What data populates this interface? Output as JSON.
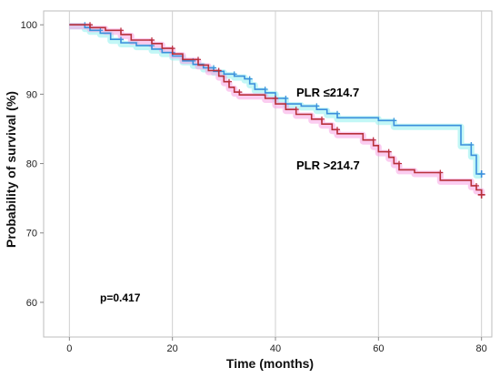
{
  "chart_data": {
    "type": "line",
    "step": true,
    "xlabel": "Time (months)",
    "ylabel": "Probability of survival (%)",
    "xlim": [
      -5,
      82
    ],
    "ylim": [
      55,
      102
    ],
    "xticks": [
      0,
      20,
      40,
      60,
      80
    ],
    "yticks": [
      60,
      70,
      80,
      90,
      100
    ],
    "grid": "vertical",
    "annotations": {
      "p_value": "p=0.417"
    },
    "series": [
      {
        "name": "PLR ≤214.7",
        "color": "#3b8fdc",
        "band_color": "#8ff0ee",
        "points": [
          [
            0,
            100
          ],
          [
            3,
            100
          ],
          [
            3,
            99.6
          ],
          [
            4,
            99.6
          ],
          [
            4,
            99.2
          ],
          [
            6,
            99.2
          ],
          [
            6,
            98.8
          ],
          [
            8,
            98.8
          ],
          [
            8,
            97.9
          ],
          [
            10,
            97.9
          ],
          [
            10,
            97.4
          ],
          [
            13,
            97.4
          ],
          [
            13,
            97.0
          ],
          [
            16,
            97.0
          ],
          [
            16,
            96.5
          ],
          [
            18,
            96.5
          ],
          [
            18,
            96.0
          ],
          [
            20,
            96.0
          ],
          [
            20,
            95.5
          ],
          [
            22,
            95.5
          ],
          [
            22,
            94.8
          ],
          [
            24,
            94.8
          ],
          [
            24,
            94.3
          ],
          [
            26,
            94.3
          ],
          [
            26,
            93.8
          ],
          [
            28,
            93.8
          ],
          [
            28,
            93.3
          ],
          [
            30,
            93.3
          ],
          [
            30,
            92.9
          ],
          [
            32,
            92.9
          ],
          [
            32,
            92.6
          ],
          [
            34,
            92.6
          ],
          [
            34,
            92.2
          ],
          [
            35,
            92.2
          ],
          [
            35,
            91.5
          ],
          [
            36,
            91.5
          ],
          [
            36,
            90.7
          ],
          [
            38,
            90.7
          ],
          [
            38,
            90.2
          ],
          [
            40,
            90.2
          ],
          [
            40,
            89.4
          ],
          [
            42,
            89.4
          ],
          [
            42,
            88.6
          ],
          [
            45,
            88.6
          ],
          [
            45,
            88.3
          ],
          [
            48,
            88.3
          ],
          [
            48,
            87.8
          ],
          [
            50,
            87.8
          ],
          [
            50,
            87.2
          ],
          [
            52,
            87.2
          ],
          [
            52,
            86.6
          ],
          [
            60,
            86.6
          ],
          [
            60,
            86.2
          ],
          [
            63,
            86.2
          ],
          [
            63,
            85.5
          ],
          [
            76,
            85.5
          ],
          [
            76,
            82.7
          ],
          [
            78,
            82.7
          ],
          [
            78,
            81.2
          ],
          [
            79,
            81.2
          ],
          [
            79,
            78.5
          ],
          [
            80,
            78.5
          ]
        ]
      },
      {
        "name": "PLR >214.7",
        "color": "#b8303a",
        "band_color": "#f7a3e3",
        "points": [
          [
            0,
            100
          ],
          [
            4,
            100
          ],
          [
            4,
            99.6
          ],
          [
            7,
            99.6
          ],
          [
            7,
            99.2
          ],
          [
            10,
            99.2
          ],
          [
            10,
            98.6
          ],
          [
            12,
            98.6
          ],
          [
            12,
            97.8
          ],
          [
            16,
            97.8
          ],
          [
            16,
            97.3
          ],
          [
            18,
            97.3
          ],
          [
            18,
            96.6
          ],
          [
            20,
            96.6
          ],
          [
            20,
            95.8
          ],
          [
            22,
            95.8
          ],
          [
            22,
            95.0
          ],
          [
            25,
            95.0
          ],
          [
            25,
            94.2
          ],
          [
            27,
            94.2
          ],
          [
            27,
            93.4
          ],
          [
            29,
            93.4
          ],
          [
            29,
            92.6
          ],
          [
            30,
            92.6
          ],
          [
            30,
            91.8
          ],
          [
            31,
            91.8
          ],
          [
            31,
            91.0
          ],
          [
            32,
            91.0
          ],
          [
            32,
            90.3
          ],
          [
            33,
            90.3
          ],
          [
            33,
            89.9
          ],
          [
            38,
            89.9
          ],
          [
            38,
            89.4
          ],
          [
            40,
            89.4
          ],
          [
            40,
            88.6
          ],
          [
            42,
            88.6
          ],
          [
            42,
            87.8
          ],
          [
            44,
            87.8
          ],
          [
            44,
            87.1
          ],
          [
            47,
            87.1
          ],
          [
            47,
            86.4
          ],
          [
            49,
            86.4
          ],
          [
            49,
            85.7
          ],
          [
            51,
            85.7
          ],
          [
            51,
            84.9
          ],
          [
            52,
            84.9
          ],
          [
            52,
            84.3
          ],
          [
            57,
            84.3
          ],
          [
            57,
            83.4
          ],
          [
            59,
            83.4
          ],
          [
            59,
            82.6
          ],
          [
            60,
            82.6
          ],
          [
            60,
            81.7
          ],
          [
            62,
            81.7
          ],
          [
            62,
            80.9
          ],
          [
            63,
            80.9
          ],
          [
            63,
            80.0
          ],
          [
            64,
            80.0
          ],
          [
            64,
            79.1
          ],
          [
            67,
            79.1
          ],
          [
            67,
            78.7
          ],
          [
            72,
            78.7
          ],
          [
            72,
            77.6
          ],
          [
            78,
            77.6
          ],
          [
            78,
            76.8
          ],
          [
            79,
            76.8
          ],
          [
            79,
            76.2
          ],
          [
            80,
            76.2
          ],
          [
            80,
            75.5
          ]
        ]
      }
    ]
  }
}
